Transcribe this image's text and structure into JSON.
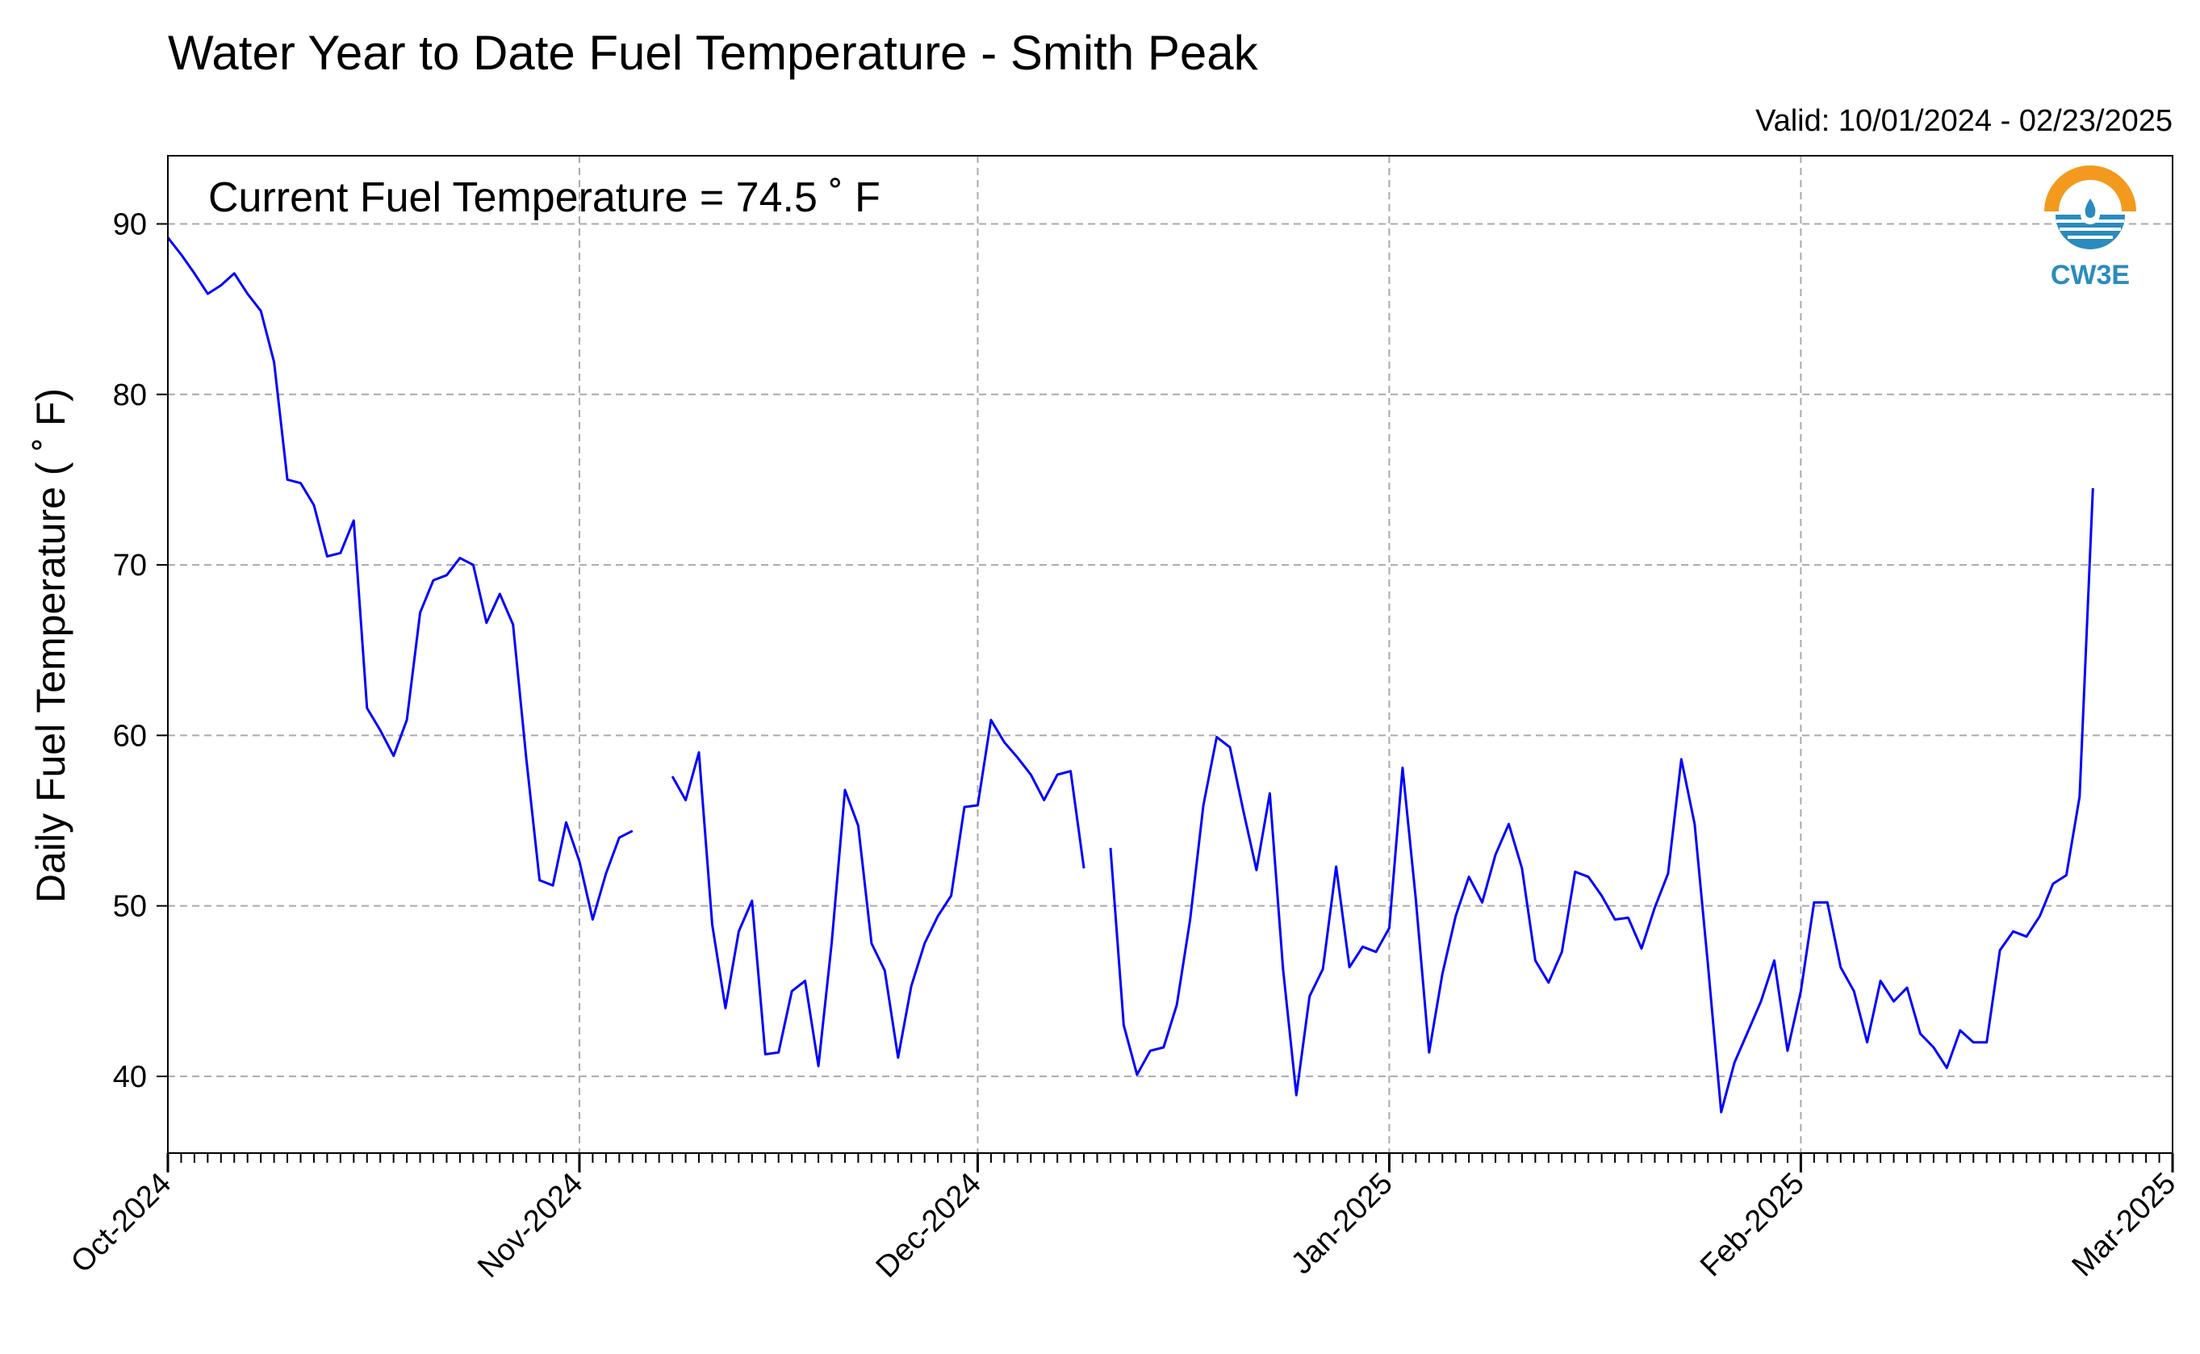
{
  "chart_data": {
    "type": "line",
    "title": "Water Year to Date Fuel Temperature - Smith Peak",
    "subtitle": "Valid: 10/01/2024 - 02/23/2025",
    "xlabel": "",
    "ylabel": "Daily Fuel Temperature ( ˚ F)",
    "annotation": "Current Fuel Temperature = 74.5  ˚ F",
    "x_axis": {
      "type": "date",
      "range": [
        "2024-10-01",
        "2025-03-01"
      ],
      "tick_labels": [
        {
          "date": "2024-10-01",
          "label": "Oct-2024"
        },
        {
          "date": "2024-11-01",
          "label": "Nov-2024"
        },
        {
          "date": "2024-12-01",
          "label": "Dec-2024"
        },
        {
          "date": "2025-01-01",
          "label": "Jan-2025"
        },
        {
          "date": "2025-02-01",
          "label": "Feb-2025"
        },
        {
          "date": "2025-03-01",
          "label": "Mar-2025"
        }
      ]
    },
    "y_axis": {
      "range": [
        35.5,
        94
      ],
      "ticks": [
        40,
        50,
        60,
        70,
        80,
        90
      ]
    },
    "grid": true,
    "legend": "none",
    "line_color": "#0000ff",
    "logo": {
      "text": "CW3E",
      "color_orange": "#f39a1e",
      "color_blue": "#2a8bbf"
    },
    "series": [
      {
        "name": "",
        "points": [
          [
            "2024-10-01",
            89.2
          ],
          [
            "2024-10-02",
            88.2
          ],
          [
            "2024-10-03",
            87.1
          ],
          [
            "2024-10-04",
            85.9
          ],
          [
            "2024-10-05",
            86.4
          ],
          [
            "2024-10-06",
            87.1
          ],
          [
            "2024-10-07",
            85.9
          ],
          [
            "2024-10-08",
            84.9
          ],
          [
            "2024-10-09",
            81.9
          ],
          [
            "2024-10-10",
            75.0
          ],
          [
            "2024-10-11",
            74.8
          ],
          [
            "2024-10-12",
            73.5
          ],
          [
            "2024-10-13",
            70.5
          ],
          [
            "2024-10-14",
            70.7
          ],
          [
            "2024-10-15",
            72.6
          ],
          [
            "2024-10-16",
            61.6
          ],
          [
            "2024-10-17",
            60.3
          ],
          [
            "2024-10-18",
            58.8
          ],
          [
            "2024-10-19",
            60.9
          ],
          [
            "2024-10-20",
            67.2
          ],
          [
            "2024-10-21",
            69.1
          ],
          [
            "2024-10-22",
            69.4
          ],
          [
            "2024-10-23",
            70.4
          ],
          [
            "2024-10-24",
            70.0
          ],
          [
            "2024-10-25",
            66.6
          ],
          [
            "2024-10-26",
            68.3
          ],
          [
            "2024-10-27",
            66.5
          ],
          [
            "2024-10-28",
            58.6
          ],
          [
            "2024-10-29",
            51.5
          ],
          [
            "2024-10-30",
            51.2
          ],
          [
            "2024-10-31",
            54.9
          ],
          [
            "2024-11-01",
            52.6
          ],
          [
            "2024-11-02",
            49.2
          ],
          [
            "2024-11-03",
            51.9
          ],
          [
            "2024-11-04",
            54.0
          ],
          [
            "2024-11-05",
            54.4
          ],
          [
            "2024-11-06",
            null
          ],
          [
            "2024-11-07",
            null
          ],
          [
            "2024-11-08",
            57.6
          ],
          [
            "2024-11-09",
            56.2
          ],
          [
            "2024-11-10",
            59.0
          ],
          [
            "2024-11-11",
            48.9
          ],
          [
            "2024-11-12",
            44.0
          ],
          [
            "2024-11-13",
            48.5
          ],
          [
            "2024-11-14",
            50.3
          ],
          [
            "2024-11-15",
            41.3
          ],
          [
            "2024-11-16",
            41.4
          ],
          [
            "2024-11-17",
            45.0
          ],
          [
            "2024-11-18",
            45.6
          ],
          [
            "2024-11-19",
            40.6
          ],
          [
            "2024-11-20",
            47.8
          ],
          [
            "2024-11-21",
            56.8
          ],
          [
            "2024-11-22",
            54.7
          ],
          [
            "2024-11-23",
            47.8
          ],
          [
            "2024-11-24",
            46.2
          ],
          [
            "2024-11-25",
            41.1
          ],
          [
            "2024-11-26",
            45.3
          ],
          [
            "2024-11-27",
            47.8
          ],
          [
            "2024-11-28",
            49.4
          ],
          [
            "2024-11-29",
            50.6
          ],
          [
            "2024-11-30",
            55.8
          ],
          [
            "2024-12-01",
            55.9
          ],
          [
            "2024-12-02",
            60.9
          ],
          [
            "2024-12-03",
            59.6
          ],
          [
            "2024-12-04",
            58.7
          ],
          [
            "2024-12-05",
            57.7
          ],
          [
            "2024-12-06",
            56.2
          ],
          [
            "2024-12-07",
            57.7
          ],
          [
            "2024-12-08",
            57.9
          ],
          [
            "2024-12-09",
            52.2
          ],
          [
            "2024-12-10",
            null
          ],
          [
            "2024-12-11",
            53.4
          ],
          [
            "2024-12-12",
            43.0
          ],
          [
            "2024-12-13",
            40.1
          ],
          [
            "2024-12-14",
            41.5
          ],
          [
            "2024-12-15",
            41.7
          ],
          [
            "2024-12-16",
            44.2
          ],
          [
            "2024-12-17",
            49.2
          ],
          [
            "2024-12-18",
            55.9
          ],
          [
            "2024-12-19",
            59.9
          ],
          [
            "2024-12-20",
            59.3
          ],
          [
            "2024-12-21",
            55.6
          ],
          [
            "2024-12-22",
            52.1
          ],
          [
            "2024-12-23",
            56.6
          ],
          [
            "2024-12-24",
            46.3
          ],
          [
            "2024-12-25",
            38.9
          ],
          [
            "2024-12-26",
            44.7
          ],
          [
            "2024-12-27",
            46.3
          ],
          [
            "2024-12-28",
            52.3
          ],
          [
            "2024-12-29",
            46.4
          ],
          [
            "2024-12-30",
            47.6
          ],
          [
            "2024-12-31",
            47.3
          ],
          [
            "2025-01-01",
            48.7
          ],
          [
            "2025-01-02",
            58.1
          ],
          [
            "2025-01-03",
            50.4
          ],
          [
            "2025-01-04",
            41.4
          ],
          [
            "2025-01-05",
            46.0
          ],
          [
            "2025-01-06",
            49.4
          ],
          [
            "2025-01-07",
            51.7
          ],
          [
            "2025-01-08",
            50.2
          ],
          [
            "2025-01-09",
            53.0
          ],
          [
            "2025-01-10",
            54.8
          ],
          [
            "2025-01-11",
            52.2
          ],
          [
            "2025-01-12",
            46.8
          ],
          [
            "2025-01-13",
            45.5
          ],
          [
            "2025-01-14",
            47.3
          ],
          [
            "2025-01-15",
            52.0
          ],
          [
            "2025-01-16",
            51.7
          ],
          [
            "2025-01-17",
            50.6
          ],
          [
            "2025-01-18",
            49.2
          ],
          [
            "2025-01-19",
            49.3
          ],
          [
            "2025-01-20",
            47.5
          ],
          [
            "2025-01-21",
            49.9
          ],
          [
            "2025-01-22",
            51.9
          ],
          [
            "2025-01-23",
            58.6
          ],
          [
            "2025-01-24",
            54.8
          ],
          [
            "2025-01-25",
            46.6
          ],
          [
            "2025-01-26",
            37.9
          ],
          [
            "2025-01-27",
            40.8
          ],
          [
            "2025-01-28",
            42.6
          ],
          [
            "2025-01-29",
            44.4
          ],
          [
            "2025-01-30",
            46.8
          ],
          [
            "2025-01-31",
            41.5
          ],
          [
            "2025-02-01",
            45.0
          ],
          [
            "2025-02-02",
            50.2
          ],
          [
            "2025-02-03",
            50.2
          ],
          [
            "2025-02-04",
            46.4
          ],
          [
            "2025-02-05",
            45.0
          ],
          [
            "2025-02-06",
            42.0
          ],
          [
            "2025-02-07",
            45.6
          ],
          [
            "2025-02-08",
            44.4
          ],
          [
            "2025-02-09",
            45.2
          ],
          [
            "2025-02-10",
            42.5
          ],
          [
            "2025-02-11",
            41.7
          ],
          [
            "2025-02-12",
            40.5
          ],
          [
            "2025-02-13",
            42.7
          ],
          [
            "2025-02-14",
            42.0
          ],
          [
            "2025-02-15",
            42.0
          ],
          [
            "2025-02-16",
            47.4
          ],
          [
            "2025-02-17",
            48.5
          ],
          [
            "2025-02-18",
            48.2
          ],
          [
            "2025-02-19",
            49.4
          ],
          [
            "2025-02-20",
            51.3
          ],
          [
            "2025-02-21",
            51.8
          ],
          [
            "2025-02-22",
            56.4
          ],
          [
            "2025-02-23",
            74.5
          ]
        ]
      }
    ]
  }
}
